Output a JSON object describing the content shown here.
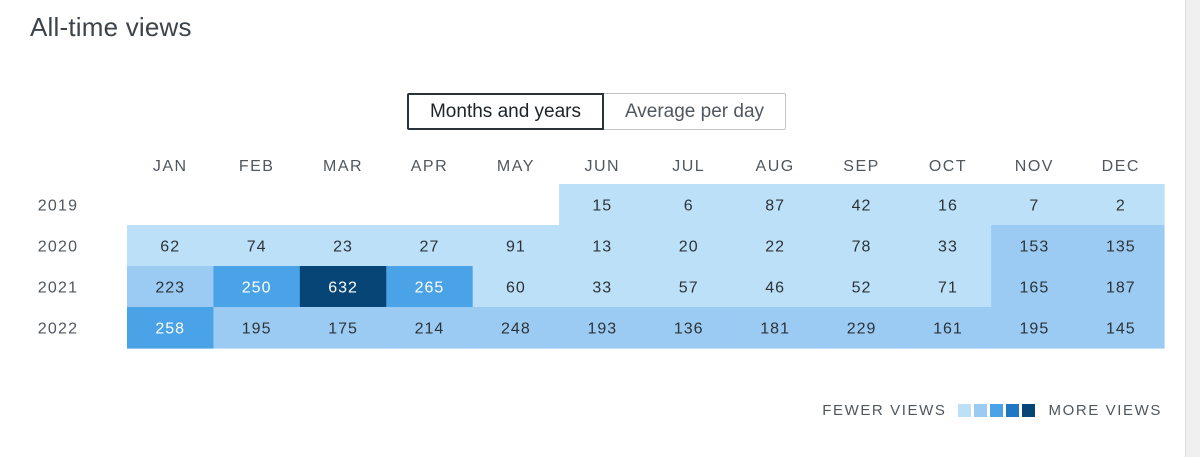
{
  "header": {
    "title": "All-time views"
  },
  "toggle": {
    "options": [
      "Months and years",
      "Average per day"
    ],
    "active": 0
  },
  "legend": {
    "low_label": "FEWER VIEWS",
    "high_label": "MORE VIEWS",
    "colors": [
      "#bde0f9",
      "#9bcbf3",
      "#4aa3e6",
      "#1f78c1",
      "#064575"
    ]
  },
  "chart_data": {
    "type": "heatmap",
    "title": "All-time views",
    "columns": [
      "JAN",
      "FEB",
      "MAR",
      "APR",
      "MAY",
      "JUN",
      "JUL",
      "AUG",
      "SEP",
      "OCT",
      "NOV",
      "DEC"
    ],
    "rows": [
      "2019",
      "2020",
      "2021",
      "2022"
    ],
    "values": [
      [
        null,
        null,
        null,
        null,
        null,
        15,
        6,
        87,
        42,
        16,
        7,
        2
      ],
      [
        62,
        74,
        23,
        27,
        91,
        13,
        20,
        22,
        78,
        33,
        153,
        135
      ],
      [
        223,
        250,
        632,
        265,
        60,
        33,
        57,
        46,
        52,
        71,
        165,
        187
      ],
      [
        258,
        195,
        175,
        214,
        248,
        193,
        136,
        181,
        229,
        161,
        195,
        145
      ]
    ]
  }
}
